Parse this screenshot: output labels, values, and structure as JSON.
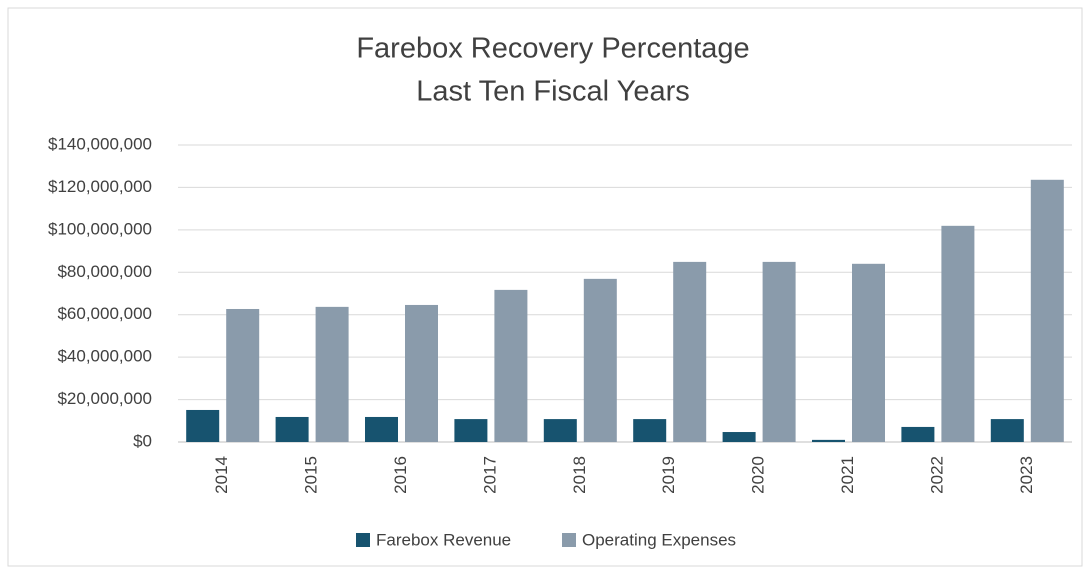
{
  "chart_data": {
    "type": "bar",
    "title": "Farebox Recovery Percentage",
    "subtitle": "Last Ten Fiscal Years",
    "categories": [
      "2014",
      "2015",
      "2016",
      "2017",
      "2018",
      "2019",
      "2020",
      "2021",
      "2022",
      "2023"
    ],
    "series": [
      {
        "name": "Farebox Revenue",
        "color": "#17536f",
        "values": [
          15100000,
          11800000,
          11800000,
          10800000,
          10800000,
          10800000,
          4700000,
          1000000,
          7100000,
          10800000
        ]
      },
      {
        "name": "Operating Expenses",
        "color": "#8a9bab",
        "values": [
          62700000,
          63700000,
          64600000,
          71700000,
          76900000,
          84900000,
          84900000,
          84000000,
          101900000,
          123600000
        ]
      }
    ],
    "ylim": [
      0,
      140000000
    ],
    "yticks": [
      {
        "value": 0,
        "label": "$0"
      },
      {
        "value": 20000000,
        "label": "$20,000,000"
      },
      {
        "value": 40000000,
        "label": "$40,000,000"
      },
      {
        "value": 60000000,
        "label": "$60,000,000"
      },
      {
        "value": 80000000,
        "label": "$80,000,000"
      },
      {
        "value": 100000000,
        "label": "$100,000,000"
      },
      {
        "value": 120000000,
        "label": "$120,000,000"
      },
      {
        "value": 140000000,
        "label": "$140,000,000"
      }
    ],
    "grid": true,
    "legend": "bottom"
  }
}
